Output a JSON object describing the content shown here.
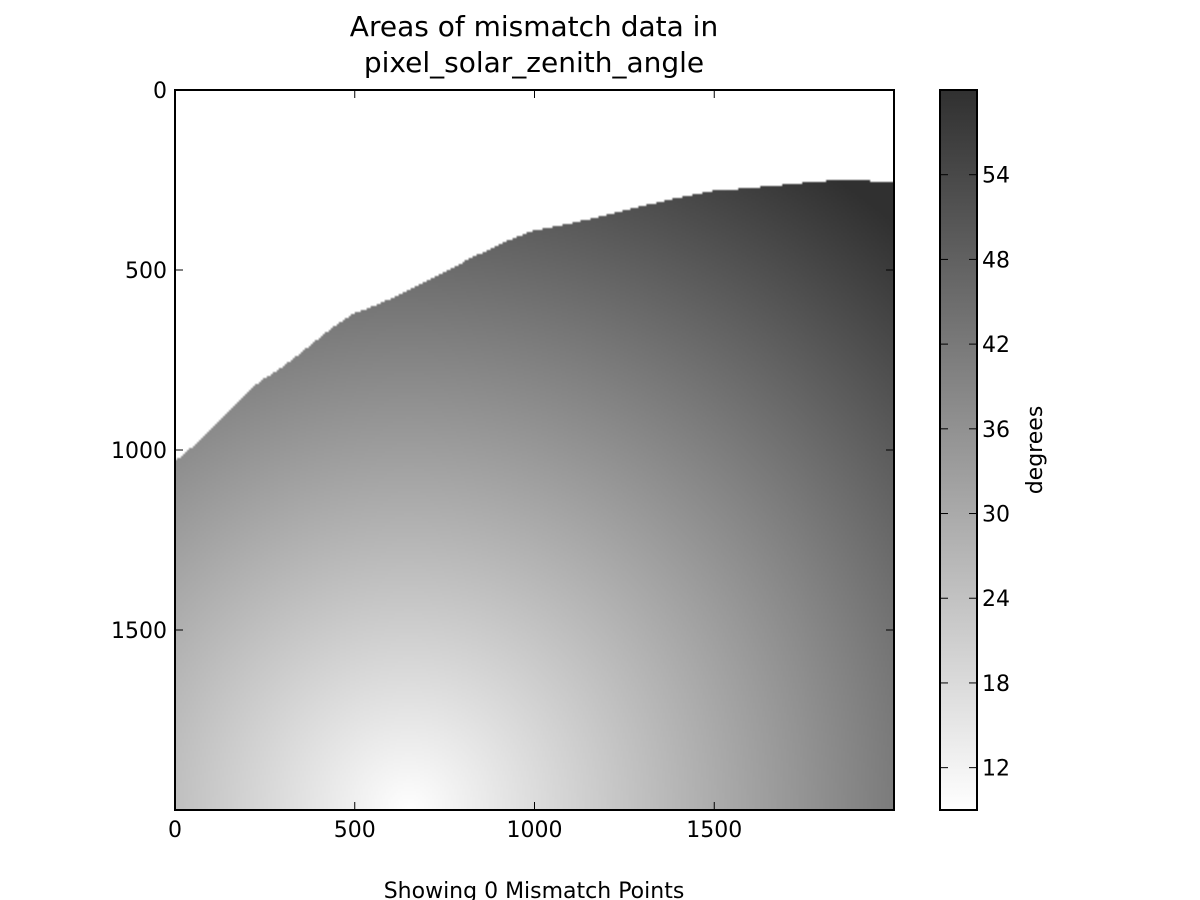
{
  "chart_data": {
    "type": "heatmap",
    "title": [
      "Areas of mismatch data in",
      "pixel_solar_zenith_angle"
    ],
    "xlabel": "Showing 0 Mismatch Points",
    "ylabel": "",
    "xlim": [
      0,
      2000
    ],
    "ylim": [
      2000,
      0
    ],
    "x_ticks": [
      "0",
      "500",
      "1000",
      "1500"
    ],
    "y_ticks": [
      "0",
      "500",
      "1000",
      "1500"
    ],
    "x_tick_values": [
      0,
      500,
      1000,
      1500
    ],
    "y_tick_values": [
      0,
      500,
      1000,
      1500
    ],
    "colormap": "Greys",
    "colorbar": {
      "label": "degrees",
      "range": [
        9,
        60
      ],
      "ticks": [
        "12",
        "18",
        "24",
        "30",
        "36",
        "42",
        "48",
        "54"
      ],
      "tick_values": [
        12,
        18,
        24,
        30,
        36,
        42,
        48,
        54
      ]
    },
    "field": {
      "description_values": "solar zenith angle in degrees over the image grid",
      "min_value": 9,
      "min_location": [
        650,
        2000
      ],
      "max_value": 60,
      "max_location": [
        1850,
        250
      ],
      "valid_boundary_points": [
        [
          0,
          1030
        ],
        [
          250,
          800
        ],
        [
          500,
          620
        ],
        [
          1000,
          390
        ],
        [
          1500,
          280
        ],
        [
          1850,
          250
        ],
        [
          2000,
          255
        ]
      ]
    },
    "grid": false,
    "legend": "none"
  }
}
